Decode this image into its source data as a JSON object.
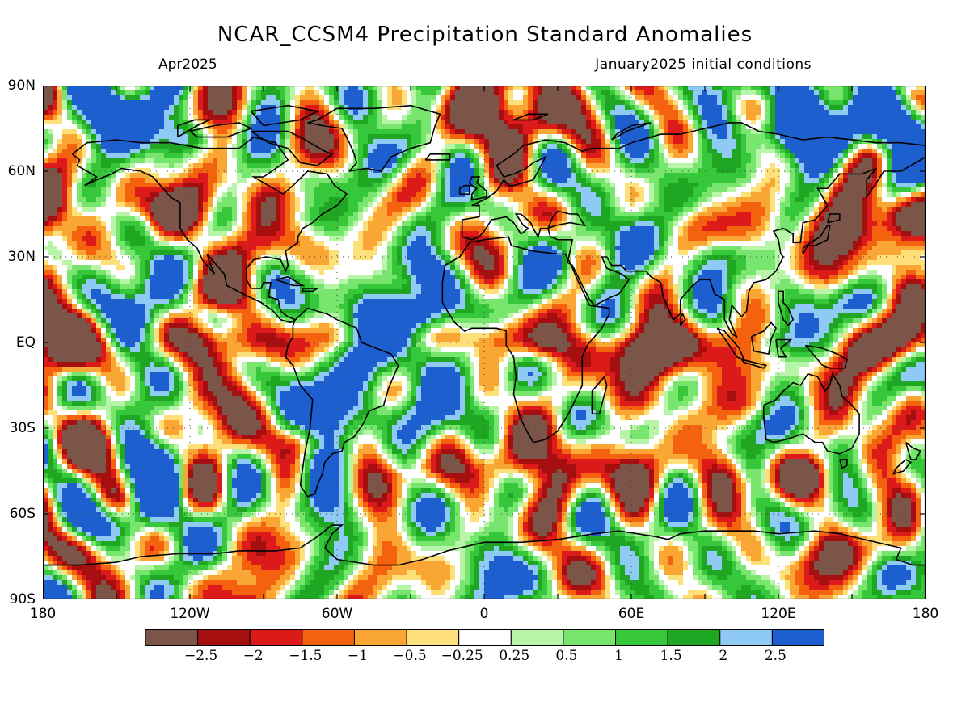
{
  "map": {
    "title": "NCAR_CCSM4 Precipitation Standard Anomalies",
    "valid_month": "Apr2025",
    "initial_conditions": "January2025 initial conditions",
    "lat_labels": [
      "90N",
      "60N",
      "30N",
      "EQ",
      "30S",
      "60S",
      "90S"
    ],
    "lon_labels": [
      "180",
      "120W",
      "60W",
      "0",
      "60E",
      "120E",
      "180"
    ]
  },
  "legend": {
    "colors": [
      "#7b5548",
      "#a50f0f",
      "#dc1a1a",
      "#f5620f",
      "#f9a635",
      "#fde07a",
      "#ffffff",
      "#b9f5a8",
      "#78e66e",
      "#36c83a",
      "#1fa622",
      "#8fcaf5",
      "#1e5fcf"
    ],
    "labels": [
      "-2.5",
      "-2",
      "-1.5",
      "-1",
      "-0.5",
      "-0.25",
      "0.25",
      "0.5",
      "1",
      "1.5",
      "2",
      "2.5"
    ]
  }
}
